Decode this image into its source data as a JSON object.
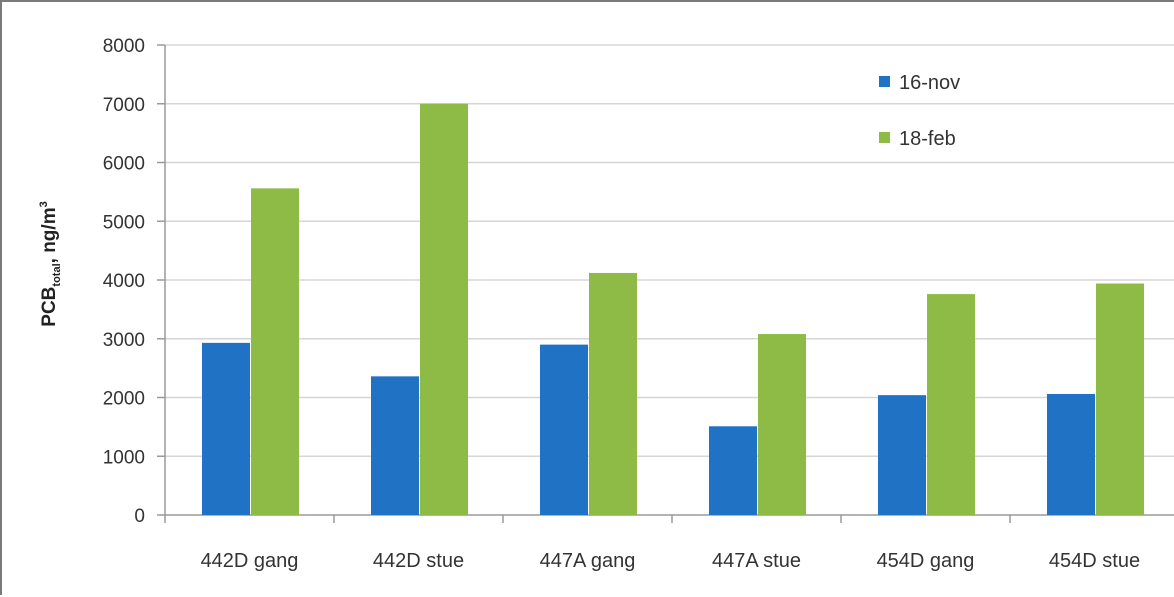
{
  "chart_data": {
    "type": "bar",
    "categories": [
      "442D gang",
      "442D stue",
      "447A gang",
      "447A stue",
      "454D gang",
      "454D stue"
    ],
    "series": [
      {
        "name": "16-nov",
        "color": "#1f72c4",
        "values": [
          2930,
          2360,
          2900,
          1510,
          2040,
          2060
        ]
      },
      {
        "name": "18-feb",
        "color": "#8dbb45",
        "values": [
          5560,
          7000,
          4120,
          3080,
          3760,
          3940
        ]
      }
    ],
    "ylim": [
      0,
      8000
    ],
    "yticks": [
      "0",
      "1000",
      "2000",
      "3000",
      "4000",
      "5000",
      "6000",
      "7000",
      "8000"
    ],
    "ylabel": {
      "main": "PCB",
      "subscript": "total",
      "unit": ", ng/m",
      "superscript": "3"
    },
    "xlabel": "",
    "title": "",
    "grid": true,
    "legend_position": "top-right"
  }
}
